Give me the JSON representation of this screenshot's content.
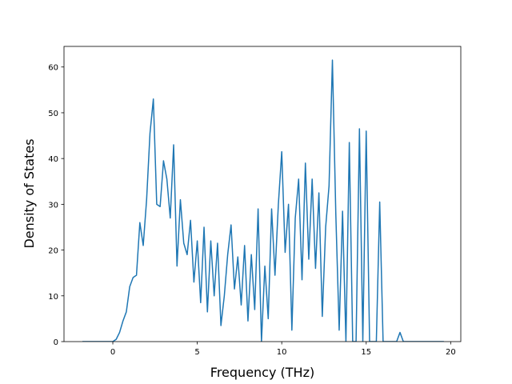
{
  "chart_data": {
    "type": "line",
    "x_label": "Frequency (THz)",
    "y_label": "Density of States",
    "x": [
      -1.8,
      0,
      0.2,
      0.4,
      0.6,
      0.8,
      1.0,
      1.2,
      1.4,
      1.6,
      1.8,
      2.0,
      2.2,
      2.4,
      2.6,
      2.8,
      3.0,
      3.2,
      3.4,
      3.6,
      3.8,
      4.0,
      4.2,
      4.4,
      4.6,
      4.8,
      5.0,
      5.2,
      5.4,
      5.6,
      5.8,
      6.0,
      6.2,
      6.4,
      6.6,
      6.8,
      7.0,
      7.2,
      7.4,
      7.6,
      7.8,
      8.0,
      8.2,
      8.4,
      8.6,
      8.8,
      9.0,
      9.2,
      9.4,
      9.6,
      9.8,
      10.0,
      10.2,
      10.4,
      10.6,
      10.8,
      11.0,
      11.2,
      11.4,
      11.6,
      11.8,
      12.0,
      12.2,
      12.4,
      12.6,
      12.8,
      13.0,
      13.2,
      13.4,
      13.6,
      13.8,
      14.0,
      14.2,
      14.4,
      14.6,
      14.8,
      15.0,
      15.2,
      15.4,
      15.6,
      15.8,
      16.0,
      16.2,
      16.4,
      16.6,
      16.8,
      17.0,
      17.2,
      19.6
    ],
    "series": [
      {
        "color": "#1f77b4",
        "values": [
          0,
          0,
          0.5,
          2,
          4.5,
          6.5,
          12,
          14,
          14.5,
          26,
          21,
          31,
          45.5,
          53,
          30,
          29.5,
          39.5,
          35.5,
          27,
          43,
          16.5,
          31,
          21.5,
          19,
          26.5,
          13,
          22,
          8.5,
          25,
          6.5,
          22,
          10,
          21.5,
          3.5,
          10,
          19,
          25.5,
          11.5,
          18.5,
          8,
          21,
          4.5,
          19,
          7,
          29,
          0,
          16.5,
          5,
          29,
          14.5,
          30,
          41.5,
          19.5,
          30,
          2.5,
          27,
          35.5,
          13.5,
          39,
          18,
          35.5,
          16,
          32.5,
          5.5,
          25,
          34,
          61.5,
          28,
          2.5,
          28.5,
          0,
          43.5,
          0,
          0,
          46.5,
          0,
          46,
          0,
          0,
          0,
          30.5,
          0,
          0,
          0,
          0,
          0,
          2,
          0,
          0
        ]
      }
    ],
    "xlim": [
      -2.89,
      20.6
    ],
    "ylim": [
      0,
      64.5
    ],
    "xticks": [
      0,
      5,
      10,
      15,
      20
    ],
    "yticks": [
      0,
      10,
      20,
      30,
      40,
      50,
      60
    ]
  }
}
